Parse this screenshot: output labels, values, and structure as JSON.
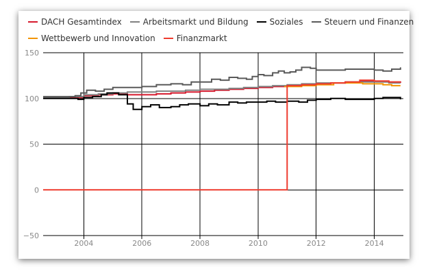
{
  "chart_data": {
    "type": "line",
    "title": "",
    "xlabel": "",
    "ylabel": "",
    "xlim": [
      2002.6,
      2015.0
    ],
    "ylim": [
      -50,
      150
    ],
    "x_ticks": [
      2004,
      2006,
      2008,
      2010,
      2012,
      2014
    ],
    "y_ticks": [
      150,
      100,
      50,
      0,
      -50
    ],
    "grid": true,
    "legend_position": "top",
    "series": [
      {
        "name": "DACH Gesamtindex",
        "color": "#d6182c",
        "step": true,
        "points": [
          [
            2002.6,
            101
          ],
          [
            2003.5,
            101
          ],
          [
            2004.0,
            103
          ],
          [
            2004.5,
            104
          ],
          [
            2005.0,
            105
          ],
          [
            2005.5,
            104
          ],
          [
            2006.0,
            104
          ],
          [
            2006.5,
            105
          ],
          [
            2007.0,
            106
          ],
          [
            2007.5,
            107
          ],
          [
            2008.0,
            108
          ],
          [
            2008.5,
            109
          ],
          [
            2009.0,
            110
          ],
          [
            2009.5,
            111
          ],
          [
            2010.0,
            112
          ],
          [
            2010.5,
            113
          ],
          [
            2011.0,
            114
          ],
          [
            2011.5,
            115
          ],
          [
            2012.0,
            116
          ],
          [
            2012.5,
            117
          ],
          [
            2013.0,
            118
          ],
          [
            2013.5,
            119
          ],
          [
            2014.0,
            119
          ],
          [
            2014.5,
            118
          ],
          [
            2014.9,
            117
          ]
        ]
      },
      {
        "name": "Arbeitsmarkt und Bildung",
        "color": "#808080",
        "step": true,
        "points": [
          [
            2002.6,
            101
          ],
          [
            2003.5,
            102
          ],
          [
            2004.0,
            104
          ],
          [
            2004.5,
            105
          ],
          [
            2005.0,
            106
          ],
          [
            2005.5,
            107
          ],
          [
            2006.0,
            107
          ],
          [
            2006.5,
            108
          ],
          [
            2007.0,
            108
          ],
          [
            2007.5,
            109
          ],
          [
            2008.0,
            110
          ],
          [
            2008.5,
            110
          ],
          [
            2009.0,
            111
          ],
          [
            2009.5,
            112
          ],
          [
            2010.0,
            113
          ],
          [
            2010.5,
            114
          ],
          [
            2011.0,
            115
          ],
          [
            2011.5,
            116
          ],
          [
            2012.0,
            117
          ],
          [
            2012.5,
            117
          ],
          [
            2013.0,
            118
          ],
          [
            2013.5,
            118
          ],
          [
            2014.0,
            118
          ],
          [
            2014.5,
            117
          ],
          [
            2014.9,
            117
          ]
        ]
      },
      {
        "name": "Soziales",
        "color": "#000000",
        "step": true,
        "points": [
          [
            2002.6,
            100
          ],
          [
            2003.3,
            100
          ],
          [
            2003.8,
            99
          ],
          [
            2004.0,
            101
          ],
          [
            2004.3,
            102
          ],
          [
            2004.6,
            104
          ],
          [
            2004.8,
            106
          ],
          [
            2005.2,
            104
          ],
          [
            2005.5,
            94
          ],
          [
            2005.7,
            88
          ],
          [
            2006.0,
            91
          ],
          [
            2006.3,
            93
          ],
          [
            2006.6,
            90
          ],
          [
            2007.0,
            91
          ],
          [
            2007.3,
            93
          ],
          [
            2007.6,
            94
          ],
          [
            2008.0,
            92
          ],
          [
            2008.3,
            94
          ],
          [
            2008.6,
            93
          ],
          [
            2009.0,
            96
          ],
          [
            2009.3,
            95
          ],
          [
            2009.6,
            96
          ],
          [
            2010.0,
            96
          ],
          [
            2010.3,
            97
          ],
          [
            2010.6,
            96
          ],
          [
            2011.0,
            97
          ],
          [
            2011.4,
            96
          ],
          [
            2011.7,
            98
          ],
          [
            2012.0,
            99
          ],
          [
            2012.5,
            100
          ],
          [
            2013.0,
            99
          ],
          [
            2013.5,
            99
          ],
          [
            2014.0,
            100
          ],
          [
            2014.3,
            101
          ],
          [
            2014.6,
            101
          ],
          [
            2014.9,
            99
          ]
        ]
      },
      {
        "name": "Steuern und Finanzen",
        "color": "#595959",
        "step": true,
        "points": [
          [
            2002.6,
            102
          ],
          [
            2003.3,
            102
          ],
          [
            2003.7,
            103
          ],
          [
            2003.9,
            106
          ],
          [
            2004.1,
            109
          ],
          [
            2004.4,
            108
          ],
          [
            2004.7,
            110
          ],
          [
            2005.0,
            112
          ],
          [
            2005.5,
            112
          ],
          [
            2006.0,
            113
          ],
          [
            2006.5,
            115
          ],
          [
            2007.0,
            116
          ],
          [
            2007.4,
            115
          ],
          [
            2007.7,
            118
          ],
          [
            2008.0,
            118
          ],
          [
            2008.4,
            121
          ],
          [
            2008.7,
            120
          ],
          [
            2009.0,
            123
          ],
          [
            2009.3,
            122
          ],
          [
            2009.6,
            121
          ],
          [
            2009.8,
            124
          ],
          [
            2010.0,
            126
          ],
          [
            2010.2,
            125
          ],
          [
            2010.5,
            128
          ],
          [
            2010.7,
            130
          ],
          [
            2010.9,
            128
          ],
          [
            2011.1,
            129
          ],
          [
            2011.3,
            131
          ],
          [
            2011.5,
            134
          ],
          [
            2011.8,
            133
          ],
          [
            2012.0,
            131
          ],
          [
            2012.5,
            131
          ],
          [
            2013.0,
            132
          ],
          [
            2013.5,
            132
          ],
          [
            2014.0,
            131
          ],
          [
            2014.3,
            130
          ],
          [
            2014.6,
            132
          ],
          [
            2014.9,
            134
          ]
        ]
      },
      {
        "name": "Wettbewerb und Innovation",
        "color": "#f29400",
        "step": true,
        "points": [
          [
            2010.9,
            113
          ],
          [
            2011.2,
            113
          ],
          [
            2011.5,
            114
          ],
          [
            2012.0,
            115
          ],
          [
            2012.3,
            115
          ],
          [
            2012.6,
            117
          ],
          [
            2013.0,
            117
          ],
          [
            2013.3,
            117
          ],
          [
            2013.6,
            116
          ],
          [
            2014.0,
            116
          ],
          [
            2014.3,
            115
          ],
          [
            2014.6,
            114
          ],
          [
            2014.9,
            114
          ]
        ]
      },
      {
        "name": "Finanzmarkt",
        "color": "#ee3a2d",
        "step": true,
        "points": [
          [
            2002.6,
            0
          ],
          [
            2011.0,
            0
          ],
          [
            2011.0,
            114
          ],
          [
            2011.5,
            115
          ],
          [
            2012.0,
            116
          ],
          [
            2012.5,
            117
          ],
          [
            2013.0,
            118
          ],
          [
            2013.5,
            120
          ],
          [
            2014.0,
            119
          ],
          [
            2014.5,
            118
          ],
          [
            2014.9,
            118
          ]
        ]
      }
    ]
  }
}
